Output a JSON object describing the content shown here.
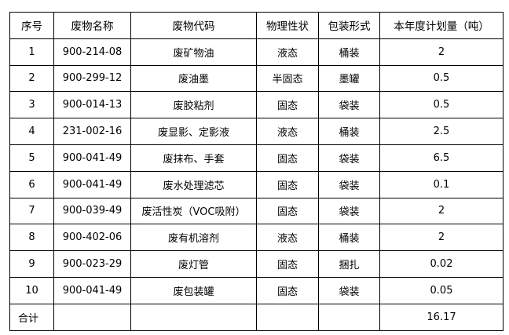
{
  "table": {
    "headers": [
      "序号",
      "废物名称",
      "废物代码",
      "物理性状",
      "包装形式",
      "本年度计划量（吨）"
    ],
    "rows": [
      [
        "1",
        "900-214-08",
        "废矿物油",
        "液态",
        "桶装",
        "2"
      ],
      [
        "2",
        "900-299-12",
        "废油墨",
        "半固态",
        "墨罐",
        "0.5"
      ],
      [
        "3",
        "900-014-13",
        "废胶粘剂",
        "固态",
        "袋装",
        "0.5"
      ],
      [
        "4",
        "231-002-16",
        "废显影、定影液",
        "液态",
        "桶装",
        "2.5"
      ],
      [
        "5",
        "900-041-49",
        "废抹布、手套",
        "固态",
        "袋装",
        "6.5"
      ],
      [
        "6",
        "900-041-49",
        "废水处理滤芯",
        "固态",
        "袋装",
        "0.1"
      ],
      [
        "7",
        "900-039-49",
        "废活性炭（VOC吸附）",
        "固态",
        "袋装",
        "2"
      ],
      [
        "8",
        "900-402-06",
        "废有机溶剂",
        "液态",
        "桶装",
        "2"
      ],
      [
        "9",
        "900-023-29",
        "废灯管",
        "固态",
        "捆扎",
        "0.02"
      ],
      [
        "10",
        "900-041-49",
        "废包装罐",
        "固态",
        "袋装",
        "0.05"
      ]
    ],
    "total": {
      "label": "合计",
      "value": "16.17"
    }
  }
}
